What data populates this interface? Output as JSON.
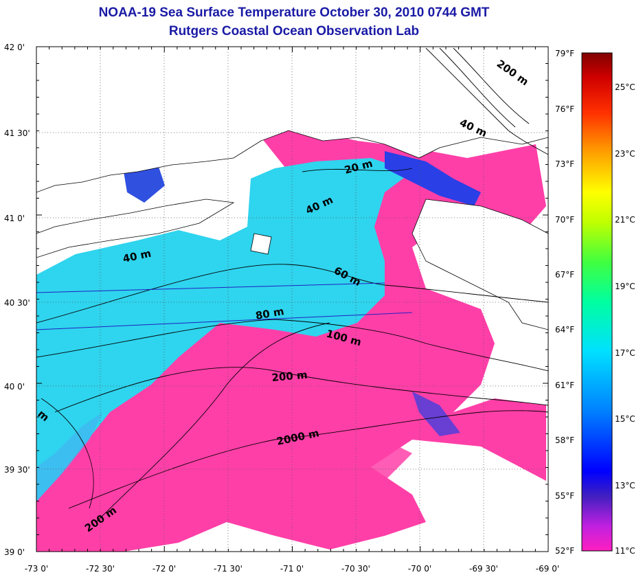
{
  "title": {
    "line1": "NOAA-19 Sea Surface Temperature October 30, 2010 0744 GMT",
    "line2": "Rutgers Coastal Ocean Observation Lab"
  },
  "axes": {
    "lon_labels": [
      "-73 0'",
      "-72 30'",
      "-72 0'",
      "-71 30'",
      "-71 0'",
      "-70 30'",
      "-70 0'",
      "-69 30'",
      "-69 0'"
    ],
    "lat_labels": [
      "42 0'",
      "41 30'",
      "41 0'",
      "40 30'",
      "40 0'",
      "39 30'",
      "39 0'"
    ],
    "lon_range": [
      -73,
      -69
    ],
    "lat_range": [
      39,
      42
    ]
  },
  "colorbar": {
    "fahrenheit_labels": [
      "79°F",
      "76°F",
      "73°F",
      "70°F",
      "67°F",
      "64°F",
      "61°F",
      "58°F",
      "55°F",
      "52°F"
    ],
    "celsius_labels": [
      "25°C",
      "23°C",
      "21°C",
      "19°C",
      "17°C",
      "15°C",
      "13°C",
      "11°C"
    ],
    "range_f": [
      52,
      79
    ]
  },
  "contour_labels": [
    {
      "text": "200 m"
    },
    {
      "text": "40 m"
    },
    {
      "text": "20 m"
    },
    {
      "text": "40 m"
    },
    {
      "text": "40 m"
    },
    {
      "text": "60 m"
    },
    {
      "text": "80 m"
    },
    {
      "text": "100 m"
    },
    {
      "text": "200 m"
    },
    {
      "text": "2000 m"
    },
    {
      "text": "200 m"
    },
    {
      "text": "m"
    }
  ],
  "colors": {
    "title": "#1a1aa6",
    "warm_water": "#ff3fa8",
    "cool_water": "#2fd4ee",
    "cold_water": "#2a3fe6",
    "land": "#ffffff"
  }
}
